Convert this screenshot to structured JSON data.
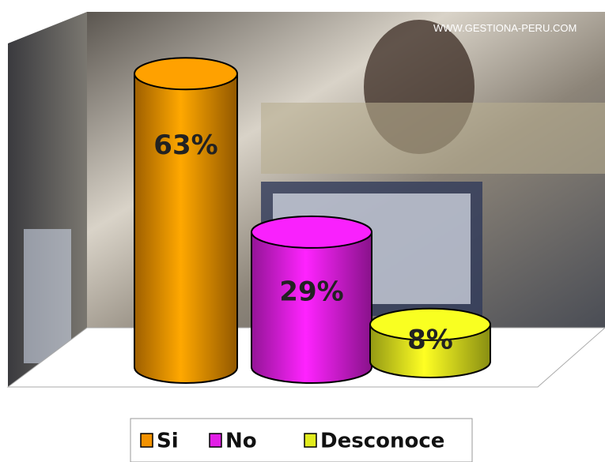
{
  "chart_data": {
    "type": "bar",
    "watermark": "WWW.GESTIONA-PERU.COM",
    "categories": [
      "Si",
      "No",
      "Desconoce"
    ],
    "values": [
      63,
      29,
      8
    ],
    "value_labels": [
      "63%",
      "29%",
      "8%"
    ],
    "colors": [
      "#f39200",
      "#e21ee6",
      "#e2ec1e"
    ]
  }
}
